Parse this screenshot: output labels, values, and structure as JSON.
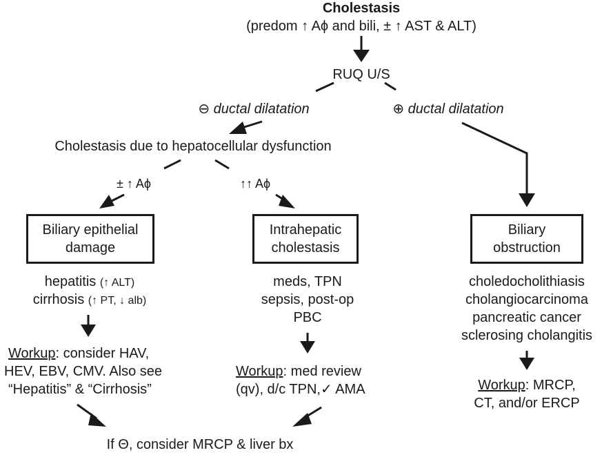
{
  "root": {
    "title": "Cholestasis",
    "subtitle": "(predom ↑ Aϕ and bili, ± ↑ AST & ALT)"
  },
  "ruq": "RUQ U/S",
  "branch_neg": {
    "symbol": "⊖",
    "label": " ductal dilatation"
  },
  "branch_pos": {
    "symbol": "⊕",
    "label": " ductal dilatation"
  },
  "hepatocellular": "Cholestasis due to hepatocellular dysfunction",
  "sub_left_label": "± ↑ Aϕ",
  "sub_mid_label": "↑↑ Aϕ",
  "left": {
    "box": [
      "Biliary epithelial",
      "damage"
    ],
    "causes": [
      {
        "main": "hepatitis ",
        "detail": "(↑ ALT)"
      },
      {
        "main": "cirrhosis ",
        "detail": "(↑ PT, ↓ alb)"
      }
    ],
    "workup_label": "Workup",
    "workup_lines": [
      ": consider HAV,",
      "HEV, EBV, CMV. Also see",
      "“Hepatitis” & “Cirrhosis”"
    ]
  },
  "middle": {
    "box": [
      "Intrahepatic",
      "cholestasis"
    ],
    "causes": [
      "meds, TPN",
      "sepsis, post-op",
      "PBC"
    ],
    "workup_label": "Workup",
    "workup_lines": [
      ": med review",
      "(qv), d/c TPN,✓ AMA"
    ]
  },
  "right": {
    "box": [
      "Biliary",
      "obstruction"
    ],
    "causes": [
      "choledocholithiasis",
      "cholangiocarcinoma",
      "pancreatic cancer",
      "sclerosing cholangitis"
    ],
    "workup_label": "Workup",
    "workup_lines": [
      ": MRCP,",
      "CT, and/or ERCP"
    ]
  },
  "final": "If Θ, consider MRCP & liver bx"
}
